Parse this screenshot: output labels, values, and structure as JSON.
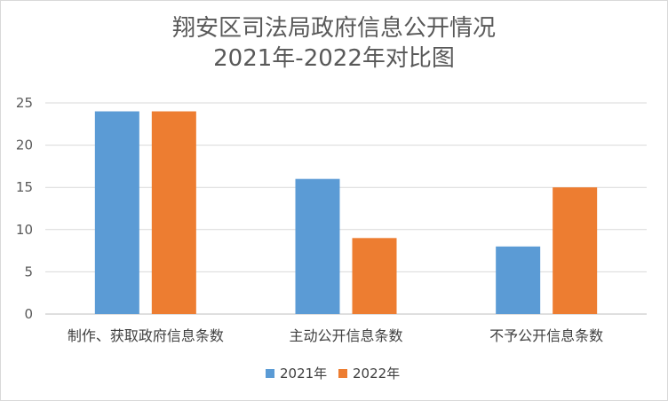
{
  "chart_data": {
    "type": "bar",
    "title_line1": "翔安区司法局政府信息公开情况",
    "title_line2": "2021年-2022年对比图",
    "categories": [
      "制作、获取政府信息条数",
      "主动公开信息条数",
      "不予公开信息条数"
    ],
    "series": [
      {
        "name": "2021年",
        "color": "#5b9bd5",
        "values": [
          24,
          16,
          8
        ]
      },
      {
        "name": "2022年",
        "color": "#ed7d31",
        "values": [
          24,
          9,
          15
        ]
      }
    ],
    "yticks": [
      0,
      5,
      10,
      15,
      20,
      25
    ],
    "ylim": [
      0,
      25
    ],
    "grid": true,
    "legend": "bottom"
  }
}
